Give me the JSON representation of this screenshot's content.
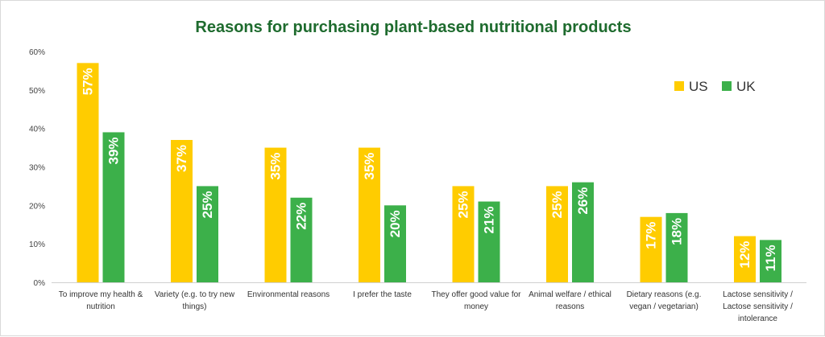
{
  "chart_data": {
    "type": "bar",
    "title": "Reasons for purchasing plant-based nutritional products",
    "xlabel": "",
    "ylabel": "",
    "ylim": [
      0,
      60
    ],
    "yticks": [
      0,
      10,
      20,
      30,
      40,
      50,
      60
    ],
    "ytick_labels": [
      "0%",
      "10%",
      "20%",
      "30%",
      "40%",
      "50%",
      "60%"
    ],
    "grid": false,
    "legend_position": "top-right",
    "categories": [
      [
        "To improve my health &",
        "nutrition"
      ],
      [
        "Variety (e.g. to try new",
        "things)"
      ],
      [
        "Environmental reasons"
      ],
      [
        "I prefer the taste"
      ],
      [
        "They offer good value for",
        "money"
      ],
      [
        "Animal welfare / ethical",
        "reasons"
      ],
      [
        "Dietary reasons (e.g.",
        "vegan / vegetarian)"
      ],
      [
        "Lactose sensitivity /",
        "Lactose sensitivity /",
        "intolerance"
      ]
    ],
    "series": [
      {
        "name": "US",
        "color": "#ffcc00",
        "values": [
          57,
          37,
          35,
          35,
          25,
          25,
          17,
          12
        ],
        "labels": [
          "57%",
          "37%",
          "35%",
          "35%",
          "25%",
          "25%",
          "17%",
          "12%"
        ]
      },
      {
        "name": "UK",
        "color": "#3cb04a",
        "values": [
          39,
          25,
          22,
          20,
          21,
          26,
          18,
          11
        ],
        "labels": [
          "39%",
          "25%",
          "22%",
          "20%",
          "21%",
          "26%",
          "18%",
          "11%"
        ]
      }
    ]
  }
}
